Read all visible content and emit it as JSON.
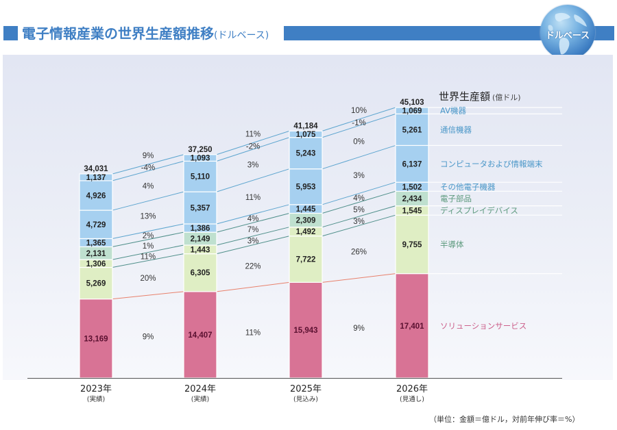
{
  "header": {
    "title": "電子情報産業の世界生産額推移",
    "title_suffix": "(ドルベース)",
    "badge_label": "ドルベース",
    "badge_icon": "globe-icon"
  },
  "footer": {
    "unit_note": "（単位：金額＝億ドル，対前年伸び率＝%）"
  },
  "colors": {
    "accent": "#3f7fc4",
    "blue_segment": "#a6d0f0",
    "teal_segment": "#bfe0cf",
    "lime_segment": "#dfeec4",
    "pink_segment": "#d87395",
    "blue_label": "#4a97c8",
    "green_label": "#5d9a7e",
    "pink_label": "#cc5f8a",
    "blue_connector": "#5da5cf",
    "green_connector": "#4f8f8a",
    "pink_connector": "#e8806b"
  },
  "chart_data": {
    "type": "bar",
    "stacked": true,
    "title": "電子情報産業の世界生産額推移(ドルベース)",
    "legend_title": "世界生産額",
    "legend_unit": "(億ドル)",
    "legend_position": "right",
    "categories": [
      "2023年",
      "2024年",
      "2025年",
      "2026年"
    ],
    "category_notes": [
      "(実績)",
      "(実績)",
      "(見込み)",
      "(見通し)"
    ],
    "totals": [
      34031,
      37250,
      41184,
      45103
    ],
    "series": [
      {
        "name": "ソリューションサービス",
        "color_group": "pink",
        "values": [
          13169,
          14407,
          15943,
          17401
        ],
        "growth": [
          "9%",
          "11%",
          "9%"
        ]
      },
      {
        "name": "半導体",
        "color_group": "lime",
        "values": [
          5269,
          6305,
          7722,
          9755
        ],
        "growth": [
          "20%",
          "22%",
          "26%"
        ]
      },
      {
        "name": "ディスプレイデバイス",
        "color_group": "lime",
        "values": [
          1306,
          1443,
          1492,
          1545
        ],
        "growth": [
          "11%",
          "3%",
          "3%"
        ]
      },
      {
        "name": "電子部品",
        "color_group": "teal",
        "values": [
          2131,
          2149,
          2309,
          2434
        ],
        "growth": [
          "1%",
          "7%",
          "5%"
        ]
      },
      {
        "name": "その他電子機器",
        "color_group": "blue",
        "values": [
          1365,
          1386,
          1445,
          1502
        ],
        "growth": [
          "2%",
          "4%",
          "4%"
        ]
      },
      {
        "name": "コンピュータおよび情報端末",
        "color_group": "blue",
        "values": [
          4729,
          5357,
          5953,
          6137
        ],
        "growth": [
          "13%",
          "11%",
          "3%"
        ]
      },
      {
        "name": "通信機器",
        "color_group": "blue",
        "values": [
          4926,
          5110,
          5243,
          5261
        ],
        "growth": [
          "4%",
          "3%",
          "0%"
        ]
      },
      {
        "name": "AV機器",
        "color_group": "blue",
        "values": [
          1137,
          1093,
          1075,
          1069
        ],
        "growth": [
          "-4%",
          "-2%",
          "-1%"
        ]
      }
    ],
    "total_growth": [
      "9%",
      "11%",
      "10%"
    ],
    "value_labels": {
      "totals": [
        "34,031",
        "37,250",
        "41,184",
        "45,103"
      ],
      "segments": [
        [
          "13,169",
          "14,407",
          "15,943",
          "17,401"
        ],
        [
          "5,269",
          "6,305",
          "7,722",
          "9,755"
        ],
        [
          "1,306",
          "1,443",
          "1,492",
          "1,545"
        ],
        [
          "2,131",
          "2,149",
          "2,309",
          "2,434"
        ],
        [
          "1,365",
          "1,386",
          "1,445",
          "1,502"
        ],
        [
          "4,729",
          "5,357",
          "5,953",
          "6,137"
        ],
        [
          "4,926",
          "5,110",
          "5,243",
          "5,261"
        ],
        [
          "1,137",
          "1,093",
          "1,075",
          "1,069"
        ]
      ]
    },
    "xlabel": "",
    "ylabel": "",
    "ylim": [
      0,
      45103
    ],
    "grid": false
  }
}
